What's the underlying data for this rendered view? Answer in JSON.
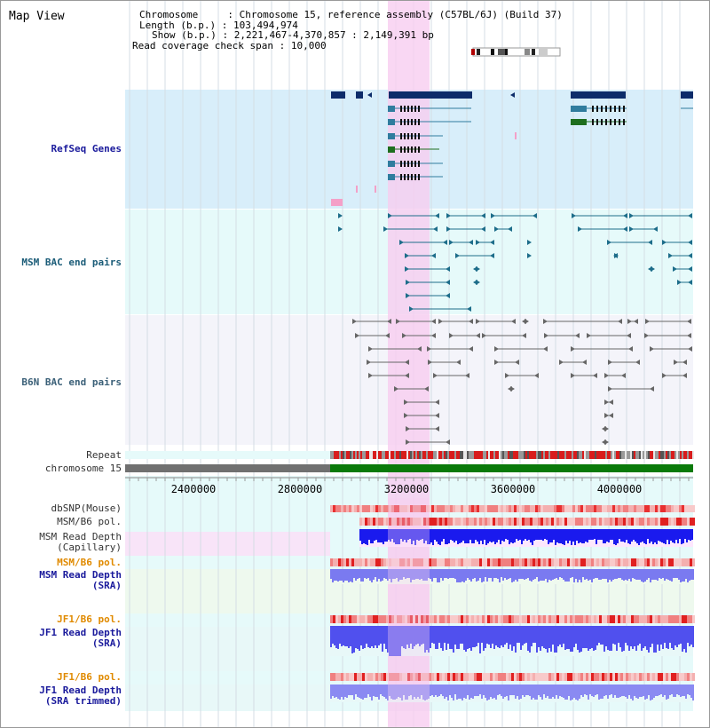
{
  "title": "Map View",
  "info": {
    "chromosome_label": "Chromosome",
    "chromosome_value": "Chromosome 15, reference assembly (C57BL/6J) (Build 37)",
    "length_label": "Length (b.p.)",
    "length_value": "103,494,974",
    "show_label": "Show (b.p.)",
    "show_value": "2,221,467-4,370,857 : 2,149,391 bp",
    "span_label": "Read coverage check span",
    "span_value": "10,000"
  },
  "tracks": {
    "refseq": "RefSeq Genes",
    "msm_bac": "MSM BAC end pairs",
    "b6n_bac": "B6N BAC end pairs",
    "repeat": "Repeat",
    "chromosome": "chromosome 15",
    "dbsnp": "dbSNP(Mouse)",
    "msm_b6_pol_1": "MSM/B6 pol.",
    "msm_read_depth_cap_1": "MSM Read Depth",
    "msm_read_depth_cap_2": "(Capillary)",
    "msm_b6_pol_2": "MSM/B6 pol.",
    "msm_read_depth_sra_1": "MSM Read Depth",
    "msm_read_depth_sra_2": "(SRA)",
    "jf1_b6_pol_1": "JF1/B6 pol.",
    "jf1_read_depth_sra_1": "JF1 Read Depth",
    "jf1_read_depth_sra_2": "(SRA)",
    "jf1_b6_pol_2": "JF1/B6 pol.",
    "jf1_read_depth_trim_1": "JF1 Read Depth",
    "jf1_read_depth_trim_2": "(SRA trimmed)"
  },
  "ruler": {
    "ticks": [
      "2400000",
      "2800000",
      "3200000",
      "3600000",
      "4000000"
    ]
  },
  "colors": {
    "refseq_bg": "#d8eefa",
    "bac_msm_bg": "#e6fafa",
    "bac_b6n_bg": "#f4f4fa",
    "highlight": "#f7cdf0",
    "gene_dark": "#0d2c6a",
    "gene_teal": "#2f7c9e",
    "gene_green": "#1e6e1e",
    "bac_teal": "#1d6d8a",
    "bac_gray": "#666666",
    "chrom_gray": "#707070",
    "chrom_green": "#0a7a0a",
    "depth_blue": "#1a1aee",
    "depth_light": "#8888f0"
  }
}
